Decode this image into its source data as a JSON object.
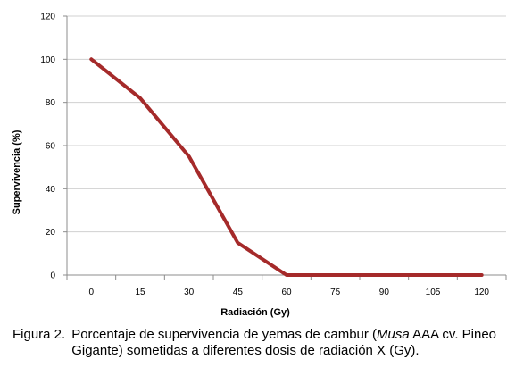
{
  "chart_data": {
    "type": "line",
    "x": [
      0,
      15,
      30,
      45,
      60,
      75,
      90,
      105,
      120
    ],
    "series": [
      {
        "values": [
          100,
          82,
          55,
          15,
          0,
          0,
          0,
          0,
          0
        ],
        "color": "#a52a2a"
      }
    ],
    "xlabel": "Radiación (Gy)",
    "ylabel": "Supervivencia (%)",
    "xticks": [
      "0",
      "15",
      "30",
      "45",
      "60",
      "75",
      "90",
      "105",
      "120"
    ],
    "yticks": [
      "0",
      "20",
      "40",
      "60",
      "80",
      "100",
      "120"
    ],
    "ylim": [
      0,
      120
    ],
    "grid": "horizontal",
    "legend": "none"
  },
  "caption": {
    "label": "Figura 2.",
    "text_before": "Porcentaje de supervivencia de yemas de cambur (",
    "italic": "Musa",
    "text_after": " AAA cv. Pineo Gigante) sometidas a diferentes dosis de radiación X (Gy)."
  }
}
